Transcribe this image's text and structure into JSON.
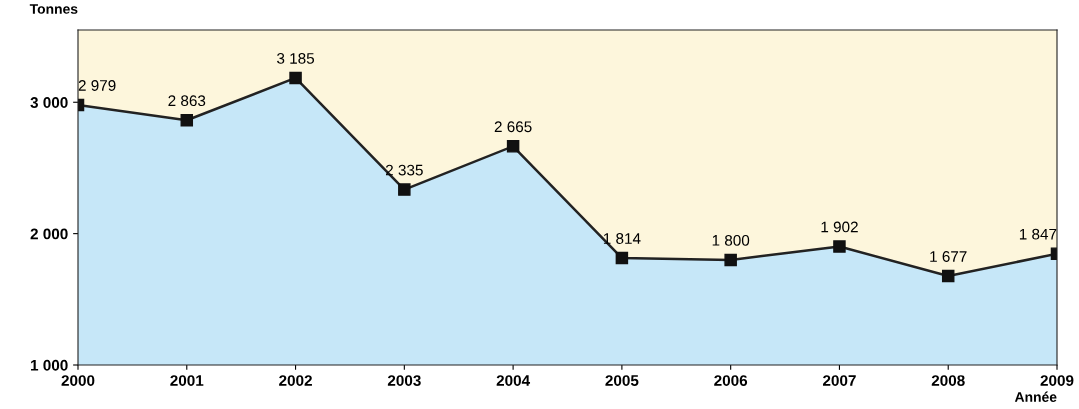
{
  "chart_data": {
    "type": "area",
    "xlabel": "Année",
    "ylabel": "Tonnes",
    "x": [
      2000,
      2001,
      2002,
      2003,
      2004,
      2005,
      2006,
      2007,
      2008,
      2009
    ],
    "xlim": [
      2000,
      2009
    ],
    "xticks": [
      2000,
      2001,
      2002,
      2003,
      2004,
      2005,
      2006,
      2007,
      2008,
      2009
    ],
    "ylim": [
      1000,
      3550
    ],
    "yticks": [
      {
        "value": 1000,
        "label": "1 000"
      },
      {
        "value": 2000,
        "label": "2 000"
      },
      {
        "value": 3000,
        "label": "3 000"
      }
    ],
    "series": [
      {
        "color": "#c6e7f8",
        "values": [
          2979,
          2863,
          3185,
          2335,
          2665,
          1814,
          1800,
          1902,
          1677,
          1847
        ],
        "value_labels": [
          "2 979",
          "2 863",
          "3 185",
          "2 335",
          "2 665",
          "1 814",
          "1 800",
          "1 902",
          "1 677",
          "1 847"
        ]
      }
    ],
    "bands": [
      {
        "axis": "x",
        "from": 2000,
        "to": 2009,
        "color": "#fdf6dc"
      }
    ],
    "marker": "square",
    "line_style": "solid",
    "grid": false,
    "legend": false
  }
}
